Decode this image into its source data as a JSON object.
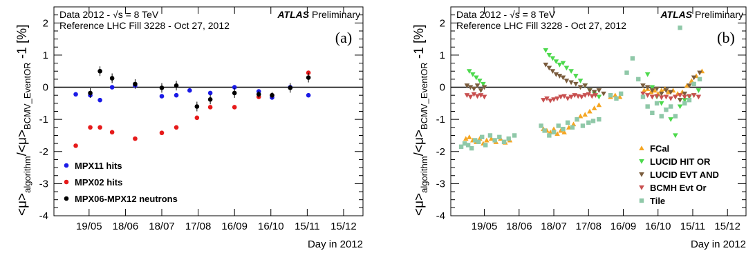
{
  "chart_data": [
    {
      "type": "scatter",
      "panel_label": "(a)",
      "annotation": {
        "line1": "Data 2012 - √s = 8 TeV",
        "line2": "Reference LHC Fill 3228 - Oct 27, 2012",
        "experiment": "ATLAS",
        "status": "Preliminary"
      },
      "xlabel": "Day in 2012",
      "ylabel": {
        "main": "<μ>",
        "sub1": "algorithm",
        "mid": "/<μ>",
        "sub2": "BCMV_EventOR",
        "tail": " -1 [%]"
      },
      "xlim": [
        110,
        365
      ],
      "ylim": [
        -4,
        2.5
      ],
      "x_ticks": [
        {
          "day": 139,
          "label": "19/05"
        },
        {
          "day": 169,
          "label": "18/06"
        },
        {
          "day": 199,
          "label": "18/07"
        },
        {
          "day": 229,
          "label": "17/08"
        },
        {
          "day": 259,
          "label": "16/09"
        },
        {
          "day": 289,
          "label": "16/10"
        },
        {
          "day": 319,
          "label": "15/11"
        },
        {
          "day": 349,
          "label": "15/12"
        }
      ],
      "y_ticks": [
        -4,
        -3,
        -2,
        -1,
        0,
        1,
        2
      ],
      "reference_line": 0,
      "legend_position": "bottom-left",
      "series": [
        {
          "name": "MPX11 hits",
          "color": "#1a1ae6",
          "marker": "circle",
          "points": [
            [
              128,
              -0.22
            ],
            [
              140,
              -0.25
            ],
            [
              148,
              -0.4
            ],
            [
              158,
              0.0
            ],
            [
              177,
              0.05
            ],
            [
              199,
              -0.28
            ],
            [
              211,
              -0.25
            ],
            [
              222,
              -0.1
            ],
            [
              239,
              -0.18
            ],
            [
              259,
              0.0
            ],
            [
              279,
              -0.13
            ],
            [
              290,
              -0.32
            ],
            [
              305,
              0.0
            ],
            [
              320,
              -0.25
            ]
          ]
        },
        {
          "name": "MPX02 hits",
          "color": "#e61a1a",
          "marker": "circle",
          "points": [
            [
              128,
              -1.82
            ],
            [
              140,
              -1.25
            ],
            [
              148,
              -1.25
            ],
            [
              158,
              -1.4
            ],
            [
              177,
              -1.6
            ],
            [
              199,
              -1.42
            ],
            [
              211,
              -1.25
            ],
            [
              228,
              -0.95
            ],
            [
              239,
              -0.62
            ],
            [
              259,
              -0.62
            ],
            [
              279,
              -0.3
            ],
            [
              290,
              -0.25
            ],
            [
              320,
              0.45
            ]
          ]
        },
        {
          "name": "MPX06-MPX12 neutrons",
          "color": "#000000",
          "marker": "circle",
          "points": [
            [
              140,
              -0.18
            ],
            [
              148,
              0.5
            ],
            [
              158,
              0.28
            ],
            [
              177,
              0.1
            ],
            [
              199,
              -0.02
            ],
            [
              211,
              0.05
            ],
            [
              228,
              -0.6
            ],
            [
              239,
              -0.38
            ],
            [
              259,
              -0.18
            ],
            [
              279,
              -0.22
            ],
            [
              290,
              -0.25
            ],
            [
              305,
              -0.02
            ],
            [
              320,
              0.3
            ]
          ],
          "errors": [
            0.15,
            0.15,
            0.15,
            0.15,
            0.15,
            0.15,
            0.15,
            0.15,
            0.15,
            0.1,
            0.1,
            0.15,
            0.15
          ]
        }
      ]
    },
    {
      "type": "scatter",
      "panel_label": "(b)",
      "annotation": {
        "line1": "Data 2012 - √s = 8 TeV",
        "line2": "Reference LHC Fill 3228 - Oct 27, 2012",
        "experiment": "ATLAS",
        "status": "Preliminary"
      },
      "xlabel": "Day in 2012",
      "ylabel": {
        "main": "<μ>",
        "sub1": "algorithm",
        "mid": "/<μ>",
        "sub2": "BCMV_EventOR",
        "tail": " -1 [%]"
      },
      "xlim": [
        110,
        365
      ],
      "ylim": [
        -4,
        2.5
      ],
      "x_ticks": [
        {
          "day": 139,
          "label": "19/05"
        },
        {
          "day": 169,
          "label": "18/06"
        },
        {
          "day": 199,
          "label": "18/07"
        },
        {
          "day": 229,
          "label": "17/08"
        },
        {
          "day": 259,
          "label": "16/09"
        },
        {
          "day": 289,
          "label": "16/10"
        },
        {
          "day": 319,
          "label": "15/11"
        },
        {
          "day": 349,
          "label": "15/12"
        }
      ],
      "y_ticks": [
        -4,
        -3,
        -2,
        -1,
        0,
        1,
        2
      ],
      "reference_line": 0,
      "legend_position": "bottom-right",
      "series": [
        {
          "name": "FCal",
          "color": "#f5a623",
          "marker": "triangle-up",
          "points": [
            [
              123,
              -1.6
            ],
            [
              126,
              -1.55
            ],
            [
              129,
              -1.65
            ],
            [
              132,
              -1.7
            ],
            [
              135,
              -1.6
            ],
            [
              138,
              -1.75
            ],
            [
              141,
              -1.65
            ],
            [
              145,
              -1.6
            ],
            [
              149,
              -1.7
            ],
            [
              153,
              -1.6
            ],
            [
              157,
              -1.72
            ],
            [
              161,
              -1.65
            ],
            [
              190,
              -1.3
            ],
            [
              193,
              -1.35
            ],
            [
              196,
              -1.4
            ],
            [
              199,
              -1.3
            ],
            [
              202,
              -1.45
            ],
            [
              205,
              -1.35
            ],
            [
              208,
              -1.4
            ],
            [
              212,
              -1.25
            ],
            [
              216,
              -1.15
            ],
            [
              219,
              -1.0
            ],
            [
              222,
              -0.9
            ],
            [
              226,
              -0.85
            ],
            [
              230,
              -0.75
            ],
            [
              234,
              -0.65
            ],
            [
              238,
              -0.55
            ],
            [
              248,
              -0.3
            ],
            [
              252,
              -0.25
            ],
            [
              256,
              -0.3
            ],
            [
              277,
              -0.1
            ],
            [
              280,
              -0.05
            ],
            [
              283,
              -0.15
            ],
            [
              286,
              -0.1
            ],
            [
              289,
              -0.2
            ],
            [
              292,
              -0.1
            ],
            [
              295,
              -0.05
            ],
            [
              298,
              -0.15
            ],
            [
              302,
              -0.1
            ],
            [
              306,
              -0.2
            ],
            [
              310,
              -0.15
            ],
            [
              314,
              0.05
            ],
            [
              318,
              0.2
            ],
            [
              322,
              0.35
            ],
            [
              327,
              0.5
            ]
          ]
        },
        {
          "name": "LUCID HIT OR",
          "color": "#4cd94c",
          "marker": "triangle-down",
          "points": [
            [
              126,
              0.5
            ],
            [
              129,
              0.4
            ],
            [
              132,
              0.3
            ],
            [
              135,
              0.2
            ],
            [
              138,
              0.1
            ],
            [
              192,
              1.15
            ],
            [
              195,
              1.0
            ],
            [
              198,
              0.9
            ],
            [
              201,
              0.8
            ],
            [
              204,
              0.7
            ],
            [
              207,
              0.75
            ],
            [
              210,
              0.6
            ],
            [
              214,
              0.5
            ],
            [
              218,
              0.35
            ],
            [
              222,
              0.2
            ],
            [
              226,
              0.05
            ],
            [
              230,
              -0.1
            ],
            [
              234,
              -0.2
            ],
            [
              238,
              -0.3
            ],
            [
              280,
              0.4
            ],
            [
              284,
              0.0
            ],
            [
              288,
              -0.3
            ],
            [
              292,
              -0.5
            ],
            [
              296,
              -0.7
            ],
            [
              300,
              -1.0
            ],
            [
              304,
              -1.5
            ],
            [
              308,
              -0.6
            ],
            [
              312,
              -0.4
            ],
            [
              316,
              -0.3
            ],
            [
              320,
              -0.25
            ],
            [
              324,
              -0.1
            ]
          ]
        },
        {
          "name": "LUCID EVT AND",
          "color": "#7a5c3d",
          "marker": "triangle-down",
          "points": [
            [
              124,
              0.05
            ],
            [
              127,
              0.0
            ],
            [
              130,
              -0.05
            ],
            [
              133,
              0.05
            ],
            [
              136,
              -0.1
            ],
            [
              139,
              0.0
            ],
            [
              192,
              0.7
            ],
            [
              195,
              0.6
            ],
            [
              198,
              0.5
            ],
            [
              201,
              0.4
            ],
            [
              204,
              0.35
            ],
            [
              207,
              0.3
            ],
            [
              210,
              0.2
            ],
            [
              214,
              0.15
            ],
            [
              218,
              0.1
            ],
            [
              222,
              0.0
            ],
            [
              226,
              0.05
            ],
            [
              230,
              -0.1
            ],
            [
              234,
              -0.15
            ],
            [
              238,
              -0.1
            ],
            [
              242,
              -0.2
            ],
            [
              276,
              0.05
            ],
            [
              280,
              0.0
            ],
            [
              284,
              -0.1
            ],
            [
              288,
              -0.05
            ],
            [
              292,
              -0.2
            ],
            [
              296,
              -0.1
            ],
            [
              300,
              -0.15
            ],
            [
              304,
              -0.3
            ],
            [
              308,
              -0.4
            ],
            [
              312,
              -0.2
            ],
            [
              316,
              0.05
            ],
            [
              320,
              0.3
            ],
            [
              325,
              0.45
            ]
          ]
        },
        {
          "name": "BCMH Evt Or",
          "color": "#c85050",
          "marker": "triangle-down",
          "points": [
            [
              124,
              -0.25
            ],
            [
              127,
              -0.3
            ],
            [
              130,
              -0.22
            ],
            [
              133,
              -0.28
            ],
            [
              136,
              -0.25
            ],
            [
              139,
              -0.3
            ],
            [
              190,
              -0.4
            ],
            [
              193,
              -0.35
            ],
            [
              196,
              -0.42
            ],
            [
              199,
              -0.38
            ],
            [
              202,
              -0.35
            ],
            [
              205,
              -0.3
            ],
            [
              208,
              -0.28
            ],
            [
              211,
              -0.35
            ],
            [
              214,
              -0.3
            ],
            [
              217,
              -0.25
            ],
            [
              220,
              -0.28
            ],
            [
              223,
              -0.3
            ],
            [
              226,
              -0.25
            ],
            [
              229,
              -0.22
            ],
            [
              232,
              -0.28
            ],
            [
              235,
              -0.25
            ],
            [
              276,
              -0.2
            ],
            [
              280,
              -0.25
            ],
            [
              284,
              -0.3
            ],
            [
              288,
              -0.28
            ],
            [
              292,
              -0.32
            ],
            [
              296,
              -0.3
            ],
            [
              300,
              -0.35
            ],
            [
              304,
              -0.3
            ],
            [
              308,
              -0.25
            ],
            [
              312,
              -0.3
            ],
            [
              316,
              -0.28
            ],
            [
              320,
              -0.25
            ],
            [
              324,
              -0.3
            ]
          ]
        },
        {
          "name": "Tile",
          "color": "#8fc8a8",
          "marker": "square",
          "points": [
            [
              119,
              -1.85
            ],
            [
              122,
              -1.75
            ],
            [
              125,
              -1.8
            ],
            [
              128,
              -1.9
            ],
            [
              131,
              -1.65
            ],
            [
              134,
              -1.7
            ],
            [
              137,
              -1.55
            ],
            [
              140,
              -1.8
            ],
            [
              144,
              -1.5
            ],
            [
              148,
              -1.65
            ],
            [
              152,
              -1.55
            ],
            [
              156,
              -1.7
            ],
            [
              160,
              -1.6
            ],
            [
              165,
              -1.5
            ],
            [
              188,
              -1.2
            ],
            [
              191,
              -1.35
            ],
            [
              195,
              -1.5
            ],
            [
              199,
              -1.4
            ],
            [
              203,
              -1.2
            ],
            [
              207,
              -1.3
            ],
            [
              211,
              -1.1
            ],
            [
              215,
              -1.25
            ],
            [
              219,
              -1.0
            ],
            [
              224,
              -1.2
            ],
            [
              229,
              -1.1
            ],
            [
              233,
              -1.05
            ],
            [
              238,
              -1.0
            ],
            [
              248,
              -0.25
            ],
            [
              253,
              -0.35
            ],
            [
              257,
              -0.2
            ],
            [
              262,
              0.45
            ],
            [
              267,
              0.9
            ],
            [
              272,
              0.25
            ],
            [
              276,
              -0.3
            ],
            [
              280,
              -0.6
            ],
            [
              284,
              -0.8
            ],
            [
              288,
              -0.5
            ],
            [
              292,
              -0.9
            ],
            [
              296,
              -0.7
            ],
            [
              300,
              -0.6
            ],
            [
              304,
              -0.9
            ],
            [
              308,
              1.85
            ],
            [
              312,
              -0.5
            ],
            [
              316,
              -0.4
            ],
            [
              320,
              0.1
            ],
            [
              325,
              0.25
            ]
          ]
        }
      ]
    }
  ]
}
